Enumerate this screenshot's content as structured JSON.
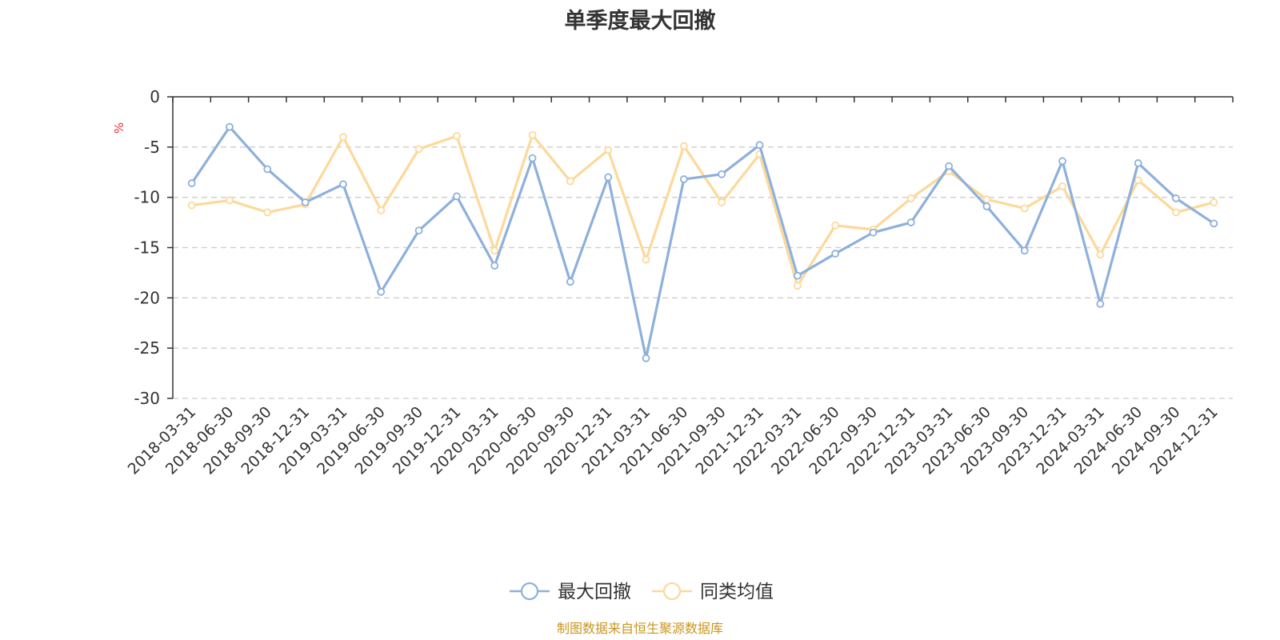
{
  "source_note": "制图数据来自恒生聚源数据库",
  "colors": {
    "series1": "#8eb0dc",
    "series2": "#fcd99a",
    "ylabel": "#e8312d",
    "grid": "#cccccc",
    "axis": "#333333"
  },
  "chart_data": {
    "type": "line",
    "title": "单季度最大回撤",
    "ylabel": "%",
    "xlabel": "",
    "ylim": [
      -30,
      0
    ],
    "yticks": [
      0,
      -5,
      -10,
      -15,
      -20,
      -25,
      -30
    ],
    "grid": "horizontal dashed",
    "legend": "bottom-center",
    "categories": [
      "2018-03-31",
      "2018-06-30",
      "2018-09-30",
      "2018-12-31",
      "2019-03-31",
      "2019-06-30",
      "2019-09-30",
      "2019-12-31",
      "2020-03-31",
      "2020-06-30",
      "2020-09-30",
      "2020-12-31",
      "2021-03-31",
      "2021-06-30",
      "2021-09-30",
      "2021-12-31",
      "2022-03-31",
      "2022-06-30",
      "2022-09-30",
      "2022-12-31",
      "2023-03-31",
      "2023-06-30",
      "2023-09-30",
      "2023-12-31",
      "2024-03-31",
      "2024-06-30",
      "2024-09-30",
      "2024-12-31"
    ],
    "series": [
      {
        "name": "最大回撤",
        "values": [
          -8.6,
          -3.0,
          -7.2,
          -10.5,
          -8.7,
          -19.4,
          -13.3,
          -9.9,
          -16.8,
          -6.1,
          -18.4,
          -8.0,
          -26.0,
          -8.2,
          -7.7,
          -4.8,
          -17.8,
          -15.6,
          -13.5,
          -12.5,
          -6.9,
          -10.9,
          -15.3,
          -6.4,
          -20.6,
          -6.6,
          -10.1,
          -12.6
        ]
      },
      {
        "name": "同类均值",
        "values": [
          -10.8,
          -10.3,
          -11.5,
          -10.7,
          -4.0,
          -11.3,
          -5.2,
          -3.9,
          -15.3,
          -3.8,
          -8.4,
          -5.3,
          -16.2,
          -4.9,
          -10.5,
          -5.7,
          -18.8,
          -12.8,
          -13.2,
          -10.1,
          -7.4,
          -10.2,
          -11.1,
          -8.9,
          -15.7,
          -8.3,
          -11.5,
          -10.5
        ]
      }
    ]
  }
}
